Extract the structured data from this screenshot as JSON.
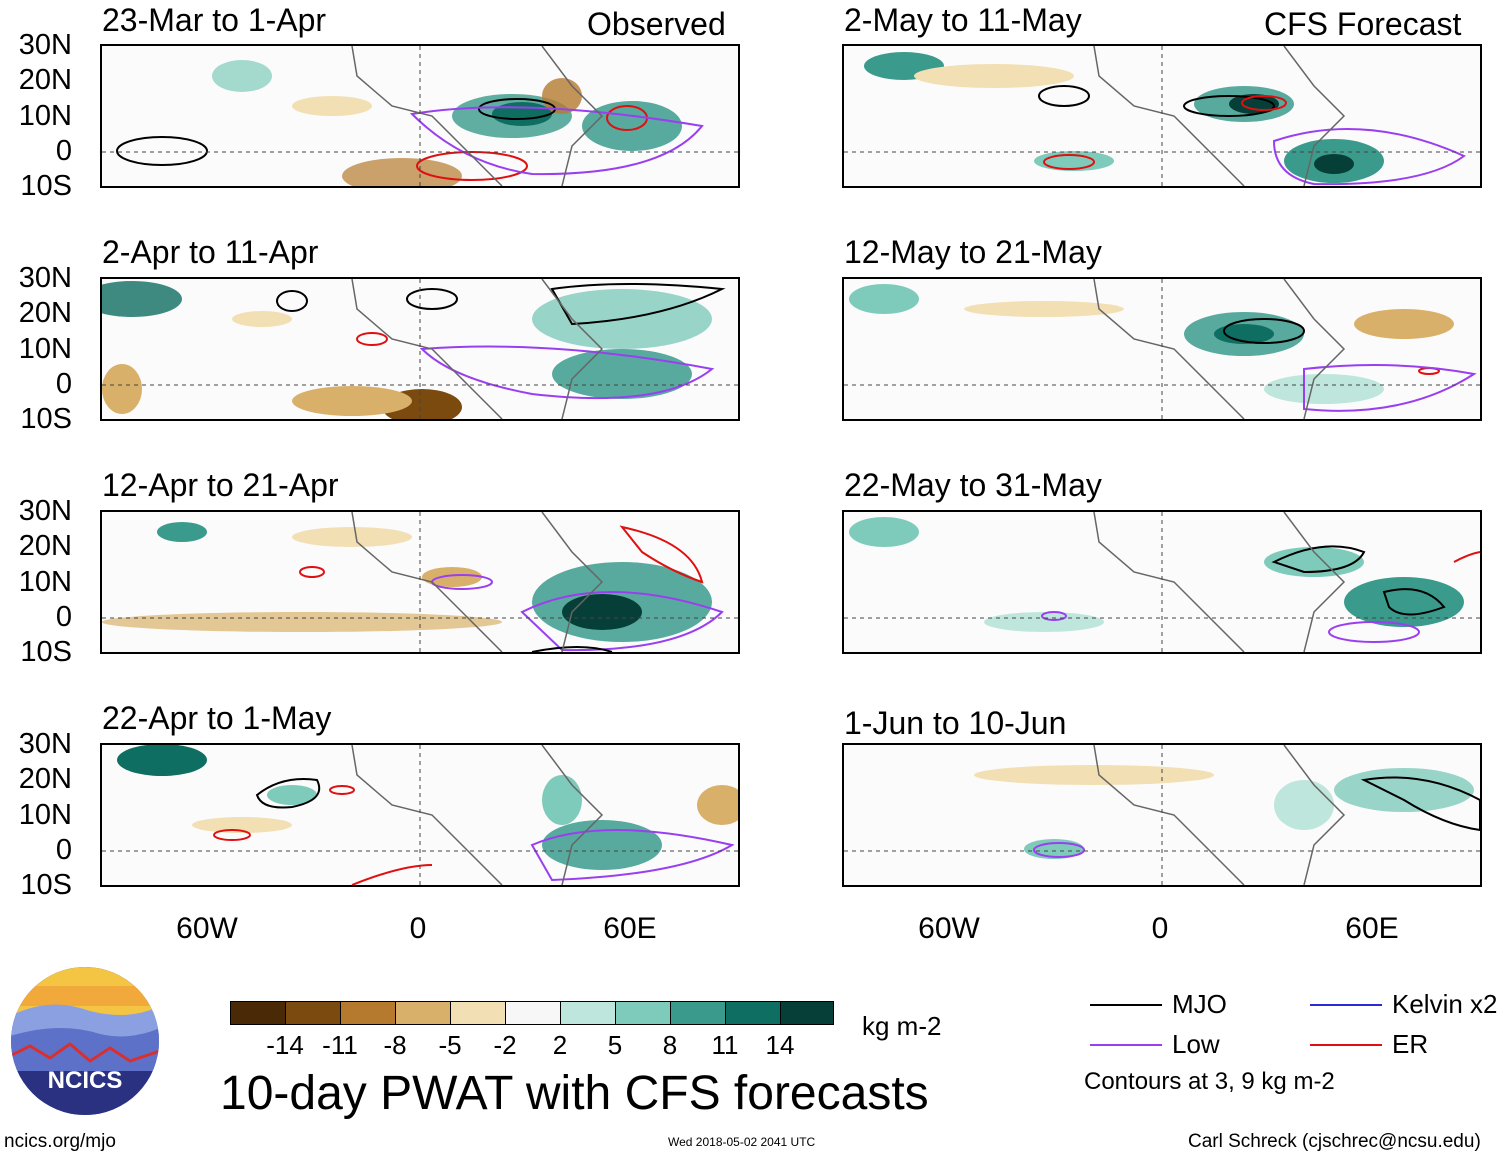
{
  "header": {
    "observed_label": "Observed",
    "forecast_label": "CFS Forecast"
  },
  "panels": {
    "observed": [
      {
        "title": "23-Mar to 1-Apr"
      },
      {
        "title": "2-Apr to 11-Apr"
      },
      {
        "title": "12-Apr to 21-Apr"
      },
      {
        "title": "22-Apr to 1-May"
      }
    ],
    "forecast": [
      {
        "title": "2-May to 11-May"
      },
      {
        "title": "12-May to 21-May"
      },
      {
        "title": "22-May to 31-May"
      },
      {
        "title": "1-Jun to 10-Jun"
      }
    ]
  },
  "axes": {
    "lat_labels": [
      "30N",
      "20N",
      "10N",
      "0",
      "10S"
    ],
    "lon_labels": [
      "60W",
      "0",
      "60E"
    ]
  },
  "colorbar": {
    "unit": "kg m-2",
    "ticks": [
      "-14",
      "-11",
      "-8",
      "-5",
      "-2",
      "2",
      "5",
      "8",
      "11",
      "14"
    ],
    "colors": [
      "#4a2a06",
      "#7a4a0e",
      "#b57a2e",
      "#d9b06a",
      "#f2dfb3",
      "#f7f7f7",
      "#bfe6dc",
      "#7fcbbb",
      "#3a9b8c",
      "#0f6e62",
      "#063f37"
    ]
  },
  "legend": {
    "items": [
      {
        "label": "MJO",
        "color": "#000000"
      },
      {
        "label": "Kelvin x2",
        "color": "#2b2bd6"
      },
      {
        "label": "Low",
        "color": "#9a3ff0"
      },
      {
        "label": "ER",
        "color": "#e01010"
      }
    ],
    "note": "Contours at 3, 9 kg m-2"
  },
  "footer": {
    "main_title": "10-day PWAT with CFS forecasts",
    "site": "ncics.org/mjo",
    "timestamp": "Wed 2018-05-02 2041 UTC",
    "credit": "Carl Schreck (cjschrec@ncsu.edu)",
    "logo_text": "NCICS"
  }
}
